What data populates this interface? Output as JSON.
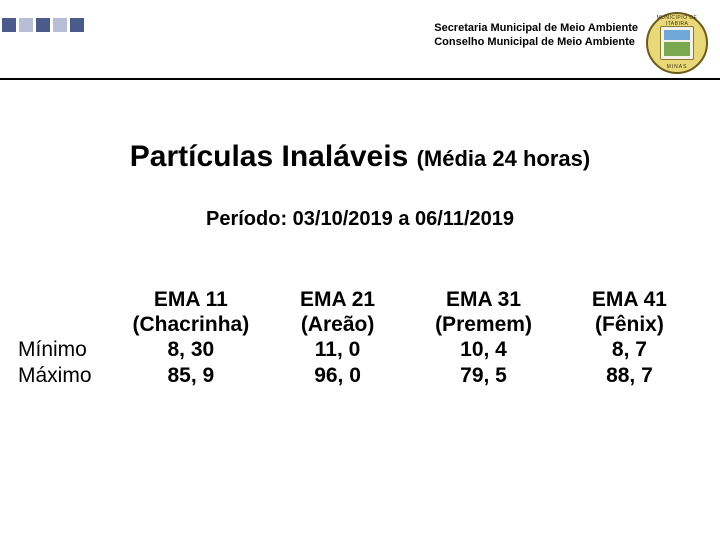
{
  "header": {
    "line1": "Secretaria Municipal de Meio Ambiente",
    "line2": "Conselho Municipal de Meio Ambiente",
    "seal_top": "MUNICÍPIO DE ITABIRA",
    "seal_bottom": "MINAS"
  },
  "title_main": "Partículas Inaláveis ",
  "title_sub": "(Média 24 horas)",
  "period": "Período: 03/10/2019 a 06/11/2019",
  "table": {
    "columns": [
      {
        "code": "EMA 11",
        "name": "(Chacrinha)"
      },
      {
        "code": "EMA 21",
        "name": "(Areão)"
      },
      {
        "code": "EMA 31",
        "name": "(Premem)"
      },
      {
        "code": "EMA 41",
        "name": "(Fênix)"
      }
    ],
    "rows": [
      {
        "label": "Mínimo",
        "values": [
          "8, 30",
          "11, 0",
          "10, 4",
          "8, 7"
        ]
      },
      {
        "label": "Máximo",
        "values": [
          "85, 9",
          "96, 0",
          "79, 5",
          "88, 7"
        ]
      }
    ]
  },
  "style": {
    "page_bg": "#ffffff",
    "text_color": "#000000",
    "decor_colors": [
      "#4a5a8a",
      "#b8bed6",
      "#4a5a8a",
      "#b8bed6",
      "#4a5a8a"
    ],
    "title_fontsize": 30,
    "title_sub_fontsize": 22,
    "period_fontsize": 20,
    "table_fontsize": 21,
    "header_fontsize": 11,
    "seal_bg": "#e8d878",
    "seal_border": "#6b5a1a"
  }
}
